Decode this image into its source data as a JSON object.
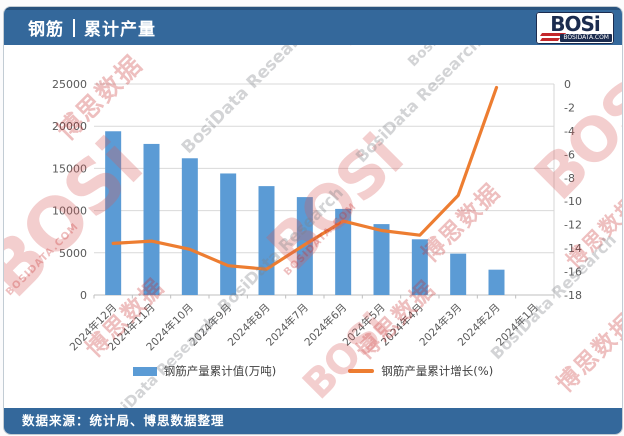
{
  "header": {
    "title_left": "钢筋",
    "title_right": "累计产量",
    "logo": {
      "text": "BOSi",
      "domain": "BOSIDATA.COM"
    }
  },
  "footer": {
    "source_text": "数据来源：统计局、博思数据整理"
  },
  "legend": [
    {
      "label": "钢筋产量累计值(万吨)",
      "type": "bar",
      "color": "#5B9BD5"
    },
    {
      "label": "钢筋产量累计增长(%)",
      "type": "line",
      "color": "#ED7D31"
    }
  ],
  "watermark": {
    "logo_text": "BOSi",
    "domain_text": "BOSIDATA.COM",
    "cn_text": "博思数据",
    "en_text": "BosiData Research"
  },
  "colors": {
    "header_bg": "#34689B",
    "bar": "#5B9BD5",
    "line": "#ED7D31",
    "axis_text": "#595959",
    "gridline": "#d9d9d9"
  },
  "chart_data": {
    "type": "bar",
    "subtype": "bar-line-combo",
    "title": "钢筋 | 累计产量",
    "categories": [
      "2024年12月",
      "2024年11月",
      "2024年10月",
      "2024年9月",
      "2024年8月",
      "2024年7月",
      "2024年6月",
      "2024年5月",
      "2024年4月",
      "2024年3月",
      "2024年2月",
      "2024年1月"
    ],
    "series": [
      {
        "name": "钢筋产量累计值(万吨)",
        "type": "bar",
        "axis": "left",
        "color": "#5B9BD5",
        "values": [
          19400,
          17900,
          16200,
          14400,
          12900,
          11600,
          10200,
          8400,
          6600,
          4900,
          3000,
          null
        ]
      },
      {
        "name": "钢筋产量累计增长(%)",
        "type": "line",
        "axis": "right",
        "color": "#ED7D31",
        "values": [
          -13.6,
          -13.4,
          -14.1,
          -15.5,
          -15.8,
          -13.7,
          -11.7,
          -12.5,
          -12.9,
          -9.5,
          -0.3,
          null
        ]
      }
    ],
    "left_axis": {
      "min": 0,
      "max": 25000,
      "ticks": [
        0,
        5000,
        10000,
        15000,
        20000,
        25000
      ]
    },
    "right_axis": {
      "min": -18,
      "max": 0,
      "ticks": [
        0,
        -2,
        -4,
        -6,
        -8,
        -10,
        -12,
        -14,
        -16,
        -18
      ]
    },
    "grid": true,
    "legend_position": "bottom",
    "xlabel": "",
    "ylabel": ""
  }
}
